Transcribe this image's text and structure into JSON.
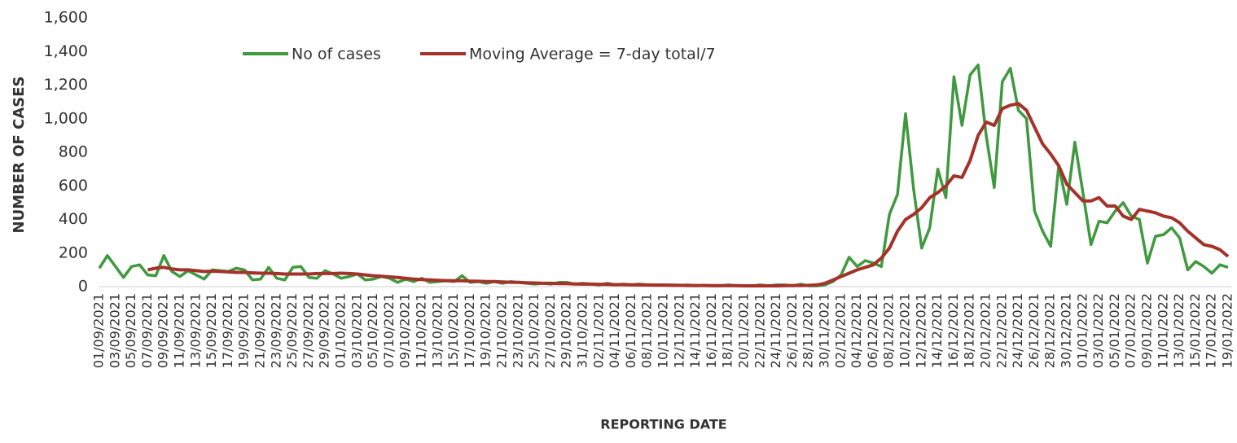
{
  "chart_data": {
    "type": "line",
    "y_label": "NUMBER OF CASES",
    "x_label": "REPORTING DATE",
    "categories": [
      "01/09/2021",
      null,
      "03/09/2021",
      null,
      "05/09/2021",
      null,
      "07/09/2021",
      null,
      "09/09/2021",
      null,
      "11/09/2021",
      null,
      "13/09/2021",
      null,
      "15/09/2021",
      null,
      "17/09/2021",
      null,
      "19/09/2021",
      null,
      "21/09/2021",
      null,
      "23/09/2021",
      null,
      "25/09/2021",
      null,
      "27/09/2021",
      null,
      "29/09/2021",
      null,
      "01/10/2021",
      null,
      "03/10/2021",
      null,
      "05/10/2021",
      null,
      "07/10/2021",
      null,
      "09/10/2021",
      null,
      "11/10/2021",
      null,
      "13/10/2021",
      null,
      "15/10/2021",
      null,
      "17/10/2021",
      null,
      "19/10/2021",
      null,
      "21/10/2021",
      null,
      "23/10/2021",
      null,
      "25/10/2021",
      null,
      "27/10/2021",
      null,
      "29/10/2021",
      null,
      "31/10/2021",
      null,
      "02/11/2021",
      null,
      "04/11/2021",
      null,
      "06/11/2021",
      null,
      "08/11/2021",
      null,
      "10/11/2021",
      null,
      "12/11/2021",
      null,
      "14/11/2021",
      null,
      "16/11/2021",
      null,
      "18/11/2021",
      null,
      "20/11/2021",
      null,
      "22/11/2021",
      null,
      "24/11/2021",
      null,
      "26/11/2021",
      null,
      "28/11/2021",
      null,
      "30/11/2021",
      null,
      "02/12/2021",
      null,
      "04/12/2021",
      null,
      "06/12/2021",
      null,
      "08/12/2021",
      null,
      "10/12/2021",
      null,
      "12/12/2021",
      null,
      "14/12/2021",
      null,
      "16/12/2021",
      null,
      "18/12/2021",
      null,
      "20/12/2021",
      null,
      "22/12/2021",
      null,
      "24/12/2021",
      null,
      "26/12/2021",
      null,
      "28/12/2021",
      null,
      "30/12/2021",
      null,
      "01/01/2022",
      null,
      "03/01/2022",
      null,
      "05/01/2022",
      null,
      "07/01/2022",
      null,
      "09/01/2022",
      null,
      "11/01/2022",
      null,
      "13/01/2022",
      null,
      "15/01/2022",
      null,
      "17/01/2022",
      null,
      "19/01/2022"
    ],
    "series": [
      {
        "name": "No of cases",
        "color": "#3f9a3f",
        "values": [
          110,
          185,
          120,
          55,
          120,
          130,
          70,
          65,
          185,
          90,
          60,
          95,
          70,
          45,
          100,
          95,
          90,
          110,
          100,
          40,
          45,
          115,
          50,
          40,
          115,
          120,
          55,
          50,
          95,
          75,
          50,
          60,
          75,
          40,
          45,
          60,
          50,
          25,
          45,
          30,
          50,
          25,
          30,
          35,
          30,
          65,
          25,
          30,
          20,
          30,
          20,
          30,
          25,
          20,
          15,
          20,
          15,
          25,
          25,
          15,
          20,
          15,
          10,
          20,
          10,
          15,
          10,
          15,
          10,
          10,
          10,
          10,
          8,
          10,
          5,
          8,
          5,
          5,
          10,
          5,
          5,
          5,
          10,
          5,
          10,
          10,
          5,
          15,
          5,
          5,
          10,
          30,
          70,
          175,
          120,
          155,
          140,
          120,
          430,
          550,
          1030,
          580,
          230,
          350,
          700,
          530,
          1250,
          960,
          1260,
          1320,
          900,
          590,
          1220,
          1300,
          1050,
          1000,
          450,
          330,
          240,
          720,
          490,
          860,
          560,
          250,
          390,
          380,
          450,
          500,
          420,
          400,
          140,
          300,
          310,
          350,
          290,
          100,
          150,
          120,
          80,
          130,
          115
        ]
      },
      {
        "name": "Moving Average = 7-day total/7",
        "color": "#a5322a",
        "values": [
          null,
          null,
          null,
          null,
          null,
          null,
          100,
          110,
          115,
          105,
          100,
          100,
          95,
          90,
          92,
          90,
          88,
          85,
          85,
          82,
          80,
          80,
          78,
          75,
          75,
          75,
          75,
          78,
          78,
          78,
          80,
          78,
          75,
          70,
          65,
          62,
          58,
          55,
          50,
          45,
          42,
          40,
          38,
          36,
          35,
          35,
          33,
          32,
          30,
          30,
          28,
          26,
          25,
          23,
          22,
          20,
          20,
          18,
          18,
          16,
          15,
          15,
          14,
          13,
          12,
          12,
          11,
          10,
          10,
          9,
          9,
          8,
          8,
          7,
          7,
          7,
          6,
          6,
          6,
          6,
          5,
          5,
          5,
          5,
          5,
          6,
          7,
          7,
          8,
          10,
          20,
          40,
          60,
          80,
          100,
          115,
          130,
          170,
          230,
          330,
          400,
          430,
          470,
          530,
          560,
          600,
          660,
          650,
          750,
          900,
          980,
          960,
          1060,
          1080,
          1090,
          1050,
          950,
          850,
          790,
          720,
          610,
          560,
          510,
          510,
          530,
          480,
          480,
          420,
          400,
          460,
          450,
          440,
          420,
          410,
          380,
          330,
          290,
          250,
          240,
          220,
          180
        ]
      }
    ],
    "ylim": [
      0,
      1600
    ],
    "yticks": [
      0,
      200,
      400,
      600,
      800,
      {
        "value": 1000,
        "label": "1,000"
      },
      {
        "value": 1200,
        "label": "1,200"
      },
      {
        "value": 1400,
        "label": "1,400"
      },
      {
        "value": 1600,
        "label": "1,600"
      }
    ],
    "grid": false,
    "legend": "top"
  }
}
